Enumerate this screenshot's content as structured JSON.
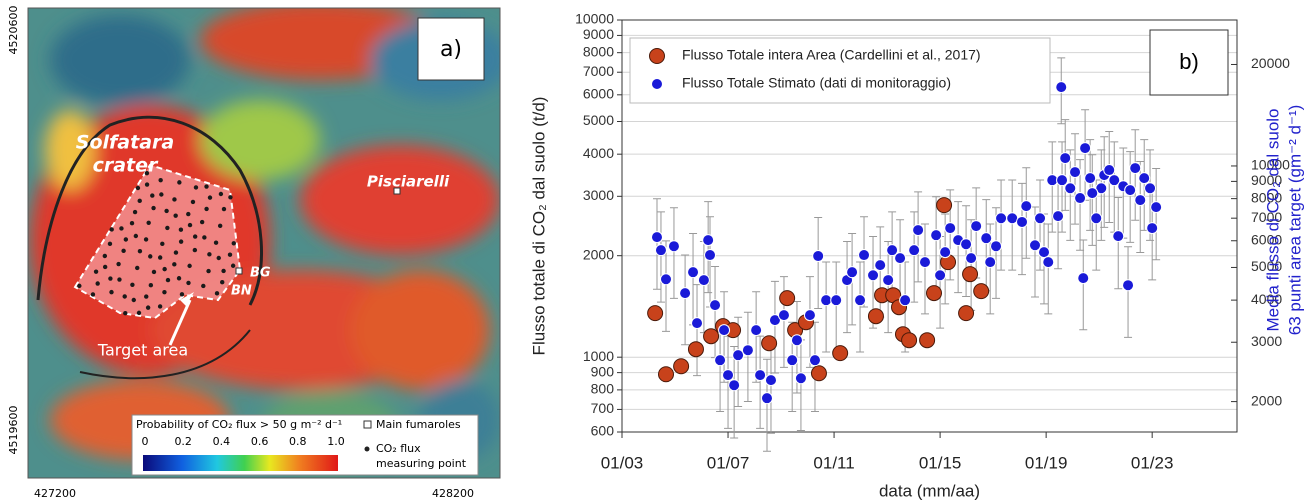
{
  "map": {
    "panel_label": "a)",
    "crater_label": [
      "Solfatara",
      "crater"
    ],
    "pisciarelli": "Pisciarelli",
    "bg": "BG",
    "bn": "BN",
    "target_label": "Target area",
    "legend_title": "Probability of CO₂ flux > 50 g m⁻² d⁻¹",
    "colorbar_ticks": [
      "0",
      "0.2",
      "0.4",
      "0.6",
      "0.8",
      "1.0"
    ],
    "fumaroles_label": "Main fumaroles",
    "measuring_label": [
      "CO₂ flux",
      "measuring point"
    ],
    "northing_labels": [
      "4520600",
      "4519600"
    ],
    "easting_labels": [
      "427200",
      "428200"
    ]
  },
  "chart_data": {
    "type": "scatter",
    "panel_label": "b)",
    "xlabel": "data (mm/aa)",
    "ylabel": "Flusso totale di CO₂ dal suolo (t/d)",
    "y2label": [
      "Media flusso di CO₂ dal suolo",
      "63 punti area target (gm⁻² d⁻¹)"
    ],
    "yscale": "log",
    "y2scale": "log",
    "grid": "y",
    "legend": "upper left",
    "xlim": [
      2003,
      2026.2
    ],
    "xticks": [
      {
        "value": 2003,
        "label": "01/03"
      },
      {
        "value": 2007,
        "label": "01/07"
      },
      {
        "value": 2011,
        "label": "01/11"
      },
      {
        "value": 2015,
        "label": "01/15"
      },
      {
        "value": 2019,
        "label": "01/19"
      },
      {
        "value": 2023,
        "label": "01/23"
      }
    ],
    "ylim": [
      600,
      10000
    ],
    "yticks": [
      600,
      700,
      800,
      900,
      1000,
      2000,
      3000,
      4000,
      5000,
      6000,
      7000,
      8000,
      9000,
      10000
    ],
    "y2lim": [
      1625,
      27100
    ],
    "y2ticks": [
      2000,
      3000,
      4000,
      5000,
      6000,
      7000,
      8000,
      9000,
      10000,
      20000
    ],
    "series": [
      {
        "name": "Flusso Totale intera Area (Cardellini et al., 2017)",
        "color": "#c8421b",
        "x": [
          2004.25,
          2004.66,
          2005.23,
          2005.79,
          2006.36,
          2006.81,
          2007.19,
          2008.55,
          2009.23,
          2009.53,
          2009.94,
          2010.43,
          2011.23,
          2012.58,
          2012.81,
          2013.23,
          2013.45,
          2013.6,
          2013.83,
          2014.51,
          2014.77,
          2015.15,
          2015.3,
          2015.98,
          2016.13,
          2016.55
        ],
        "values": [
          1351,
          890,
          940,
          1056,
          1154,
          1236,
          1203,
          1100,
          1497,
          1203,
          1270,
          896,
          1028,
          1323,
          1527,
          1527,
          1407,
          1170,
          1123,
          1123,
          1549,
          2825,
          1914,
          1351,
          1763,
          1570
        ]
      },
      {
        "name": "Flusso Totale Stimato (dati di monitoraggio)",
        "color": "#1a1ad8",
        "x": [
          2004.32,
          2004.47,
          2004.66,
          2004.96,
          2005.38,
          2005.68,
          2005.83,
          2006.09,
          2006.25,
          2006.32,
          2006.51,
          2006.7,
          2006.85,
          2007.0,
          2007.23,
          2007.38,
          2007.75,
          2008.06,
          2008.21,
          2008.47,
          2008.62,
          2008.77,
          2009.11,
          2009.42,
          2009.6,
          2009.75,
          2010.09,
          2010.28,
          2010.4,
          2010.7,
          2011.08,
          2011.49,
          2011.68,
          2011.98,
          2012.13,
          2012.47,
          2012.74,
          2013.04,
          2013.19,
          2013.49,
          2013.68,
          2014.02,
          2014.17,
          2014.43,
          2014.85,
          2015.0,
          2015.19,
          2015.38,
          2015.68,
          2015.98,
          2016.17,
          2016.36,
          2016.74,
          2016.89,
          2017.11,
          2017.3,
          2017.72,
          2018.09,
          2018.25,
          2018.58,
          2018.77,
          2018.92,
          2019.08,
          2019.23,
          2019.45,
          2019.57,
          2019.6,
          2019.72,
          2019.91,
          2020.09,
          2020.28,
          2020.4,
          2020.47,
          2020.66,
          2020.89,
          2021.08,
          2021.19,
          2021.38,
          2021.57,
          2021.72,
          2021.91,
          2022.09,
          2022.17,
          2022.36,
          2022.55,
          2022.7,
          2022.92,
          2023.0,
          2023.15,
          2020.74
        ],
        "values": [
          2270,
          2077,
          1703,
          2134,
          1549,
          1787,
          1262,
          1693,
          2224,
          2009,
          1427,
          980,
          1203,
          885,
          826,
          1014,
          1049,
          1203,
          885,
          756,
          855,
          1288,
          1333,
          980,
          1123,
          866,
          1333,
          980,
          1995,
          1476,
          1476,
          1693,
          1787,
          1476,
          2009,
          1750,
          1875,
          1693,
          2077,
          1967,
          1476,
          2077,
          2382,
          1914,
          2301,
          1750,
          2049,
          2415,
          2224,
          2163,
          1967,
          2448,
          2254,
          1914,
          2134,
          2583,
          2583,
          2518,
          2806,
          2148,
          2583,
          2049,
          1914,
          3350,
          2620,
          6324,
          3350,
          3895,
          3170,
          3540,
          2965,
          1716,
          4170,
          3397,
          2583,
          3170,
          3467,
          3589,
          3350,
          2286,
          3214,
          1635,
          3130,
          3638,
          2924,
          3397,
          3170,
          2415,
          2786,
          3066
        ],
        "errors": [
          680,
          620,
          510,
          640,
          460,
          540,
          380,
          510,
          670,
          600,
          430,
          290,
          360,
          270,
          250,
          300,
          310,
          360,
          270,
          230,
          260,
          390,
          400,
          290,
          340,
          260,
          400,
          290,
          600,
          440,
          440,
          510,
          540,
          440,
          600,
          530,
          560,
          510,
          620,
          590,
          440,
          620,
          710,
          570,
          690,
          530,
          610,
          720,
          670,
          650,
          590,
          730,
          680,
          570,
          640,
          770,
          770,
          760,
          840,
          640,
          770,
          610,
          570,
          1000,
          790,
          1400,
          1000,
          1170,
          950,
          1060,
          890,
          510,
          1250,
          1020,
          770,
          950,
          1040,
          1080,
          1000,
          690,
          960,
          490,
          940,
          1090,
          880,
          1020,
          950,
          720,
          840,
          920
        ]
      }
    ]
  }
}
